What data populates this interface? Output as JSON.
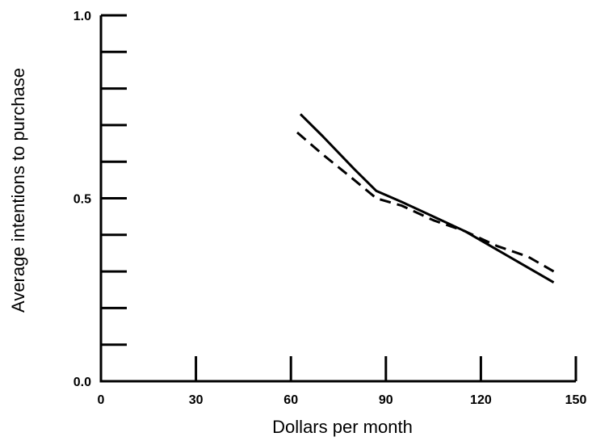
{
  "chart_data": {
    "type": "line",
    "title": "",
    "xlabel": "Dollars per month",
    "ylabel": "Average intentions to purchase",
    "xlim": [
      0,
      150
    ],
    "ylim": [
      0.0,
      1.0
    ],
    "x_ticks": [
      0,
      30,
      60,
      90,
      120,
      150
    ],
    "x_tick_labels": [
      "0",
      "30",
      "60",
      "90",
      "120",
      "150"
    ],
    "y_ticks": [
      0.0,
      0.1,
      0.2,
      0.3,
      0.4,
      0.5,
      0.6,
      0.7,
      0.8,
      0.9,
      1.0
    ],
    "y_tick_labels": [
      "0.0",
      "",
      "",
      "",
      "",
      "0.5",
      "",
      "",
      "",
      "",
      "1.0"
    ],
    "grid": false,
    "legend": "none",
    "series": [
      {
        "style": "solid",
        "color": "#000000",
        "x": [
          63,
          70,
          80,
          87,
          95,
          105,
          115,
          125,
          135,
          143
        ],
        "y": [
          0.73,
          0.67,
          0.58,
          0.52,
          0.49,
          0.45,
          0.41,
          0.36,
          0.31,
          0.27
        ]
      },
      {
        "style": "dashed",
        "color": "#000000",
        "x": [
          62,
          70,
          80,
          87,
          95,
          105,
          115,
          125,
          135,
          143
        ],
        "y": [
          0.68,
          0.62,
          0.55,
          0.5,
          0.48,
          0.44,
          0.41,
          0.37,
          0.34,
          0.3
        ]
      }
    ]
  }
}
